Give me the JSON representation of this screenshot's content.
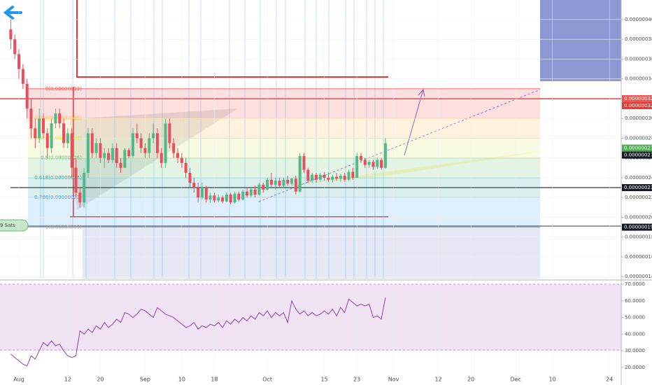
{
  "chart_data": [
    {
      "type": "candlestick",
      "up_color": "#53b987",
      "down_color": "#eb4d5c",
      "grid": true,
      "x": [
        -2,
        -1,
        0,
        1,
        2,
        3,
        4,
        5,
        6,
        7,
        8,
        9,
        10,
        11,
        12,
        13,
        14,
        15,
        16,
        17,
        18,
        19,
        20,
        21,
        22,
        23,
        24,
        25,
        26,
        27,
        28,
        29,
        30,
        31,
        32,
        33,
        34,
        35,
        36,
        37,
        38,
        39,
        40,
        41,
        42,
        43,
        44,
        45,
        46,
        47,
        48,
        49,
        50,
        51,
        52,
        53,
        54,
        55,
        56,
        57,
        58,
        59,
        60,
        61,
        62,
        63,
        64,
        65,
        66,
        67,
        68,
        69,
        70,
        71,
        72,
        73,
        74,
        75,
        76,
        77,
        78,
        79,
        80,
        81,
        82,
        83,
        84,
        85,
        86,
        87,
        88,
        89,
        90
      ],
      "open": [
        3.9e-07,
        3.8e-07,
        3.65e-07,
        3.5e-07,
        3.35e-07,
        3.1e-07,
        2.9e-07,
        2.8e-07,
        3e-07,
        2.85e-07,
        2.7e-07,
        2.95e-07,
        3.05e-07,
        2.95e-07,
        2.75e-07,
        2.85e-07,
        2.5e-07,
        2.25e-07,
        2.15e-07,
        2.45e-07,
        2.85e-07,
        2.65e-07,
        2.75e-07,
        2.6e-07,
        2.65e-07,
        2.58e-07,
        2.7e-07,
        2.55e-07,
        2.5e-07,
        2.68e-07,
        2.62e-07,
        2.85e-07,
        2.8e-07,
        2.7e-07,
        2.65e-07,
        2.8e-07,
        2.85e-07,
        2.65e-07,
        2.55e-07,
        2.95e-07,
        2.75e-07,
        2.65e-07,
        2.6e-07,
        2.55e-07,
        2.45e-07,
        2.35e-07,
        2.3e-07,
        2.2e-07,
        2.3e-07,
        2.18e-07,
        2.22e-07,
        2.17e-07,
        2.2e-07,
        2.16e-07,
        2.23e-07,
        2.15e-07,
        2.24e-07,
        2.18e-07,
        2.26e-07,
        2.22e-07,
        2.28e-07,
        2.23e-07,
        2.33e-07,
        2.28e-07,
        2.38e-07,
        2.33e-07,
        2.37e-07,
        2.32e-07,
        2.38e-07,
        2.34e-07,
        2.39e-07,
        2.26e-07,
        2.62e-07,
        2.48e-07,
        2.37e-07,
        2.43e-07,
        2.38e-07,
        2.43e-07,
        2.4e-07,
        2.38e-07,
        2.41e-07,
        2.39e-07,
        2.42e-07,
        2.38e-07,
        2.46e-07,
        2.4e-07,
        2.62e-07,
        2.58e-07,
        2.53e-07,
        2.56e-07,
        2.51e-07,
        2.58e-07,
        2.5e-07
      ],
      "high": [
        4e-07,
        3.85e-07,
        3.7e-07,
        3.55e-07,
        3.4e-07,
        3.2e-07,
        3e-07,
        3.1e-07,
        3.05e-07,
        2.9e-07,
        3e-07,
        3.1e-07,
        3.1e-07,
        3e-07,
        2.9e-07,
        2.9e-07,
        2.6e-07,
        2.3e-07,
        2.5e-07,
        2.9e-07,
        2.9e-07,
        2.8e-07,
        2.8e-07,
        2.7e-07,
        2.7e-07,
        2.75e-07,
        2.75e-07,
        2.6e-07,
        2.7e-07,
        2.7e-07,
        2.9e-07,
        2.95e-07,
        2.85e-07,
        2.75e-07,
        2.85e-07,
        2.95e-07,
        2.9e-07,
        2.7e-07,
        3e-07,
        3e-07,
        2.8e-07,
        2.7e-07,
        2.65e-07,
        2.6e-07,
        2.5e-07,
        2.4e-07,
        2.35e-07,
        2.35e-07,
        2.32e-07,
        2.25e-07,
        2.25e-07,
        2.23e-07,
        2.22e-07,
        2.25e-07,
        2.25e-07,
        2.26e-07,
        2.26e-07,
        2.28e-07,
        2.3e-07,
        2.3e-07,
        2.32e-07,
        2.35e-07,
        2.35e-07,
        2.4e-07,
        2.45e-07,
        2.4e-07,
        2.4e-07,
        2.4e-07,
        2.42e-07,
        2.4e-07,
        2.42e-07,
        2.65e-07,
        2.65e-07,
        2.5e-07,
        2.45e-07,
        2.45e-07,
        2.45e-07,
        2.46e-07,
        2.45e-07,
        2.43e-07,
        2.45e-07,
        2.44e-07,
        2.45e-07,
        2.48e-07,
        2.5e-07,
        2.65e-07,
        2.65e-07,
        2.6e-07,
        2.58e-07,
        2.58e-07,
        2.6e-07,
        2.6e-07,
        2.8e-07
      ],
      "low": [
        3.7e-07,
        3.6e-07,
        3.4e-07,
        3.3e-07,
        3e-07,
        2.8e-07,
        2.7e-07,
        2.75e-07,
        2.8e-07,
        2.6e-07,
        2.65e-07,
        2.9e-07,
        2.9e-07,
        2.7e-07,
        2.7e-07,
        2.4e-07,
        2.2e-07,
        2.1e-07,
        2.1e-07,
        2.4e-07,
        2.6e-07,
        2.6e-07,
        2.55e-07,
        2.5e-07,
        2.55e-07,
        2.55e-07,
        2.5e-07,
        2.45e-07,
        2.5e-07,
        2.6e-07,
        2.6e-07,
        2.75e-07,
        2.65e-07,
        2.6e-07,
        2.6e-07,
        2.75e-07,
        2.6e-07,
        2.5e-07,
        2.5e-07,
        2.7e-07,
        2.6e-07,
        2.55e-07,
        2.5e-07,
        2.4e-07,
        2.3e-07,
        2.25e-07,
        2.15e-07,
        2.18e-07,
        2.15e-07,
        2.15e-07,
        2.15e-07,
        2.15e-07,
        2.14e-07,
        2.15e-07,
        2.13e-07,
        2.14e-07,
        2.16e-07,
        2.17e-07,
        2.2e-07,
        2.2e-07,
        2.2e-07,
        2.22e-07,
        2.25e-07,
        2.27e-07,
        2.3e-07,
        2.28e-07,
        2.3e-07,
        2.3e-07,
        2.32e-07,
        2.32e-07,
        2.23e-07,
        2.25e-07,
        2.45e-07,
        2.35e-07,
        2.35e-07,
        2.35e-07,
        2.36e-07,
        2.37e-07,
        2.36e-07,
        2.35e-07,
        2.37e-07,
        2.36e-07,
        2.36e-07,
        2.37e-07,
        2.38e-07,
        2.4e-07,
        2.55e-07,
        2.5e-07,
        2.5e-07,
        2.48e-07,
        2.49e-07,
        2.48e-07,
        2.49e-07
      ],
      "close": [
        3.8e-07,
        3.65e-07,
        3.5e-07,
        3.35e-07,
        3.1e-07,
        2.9e-07,
        2.8e-07,
        3e-07,
        2.85e-07,
        2.7e-07,
        2.95e-07,
        3.05e-07,
        2.95e-07,
        2.75e-07,
        2.85e-07,
        2.5e-07,
        2.25e-07,
        2.15e-07,
        2.45e-07,
        2.85e-07,
        2.65e-07,
        2.75e-07,
        2.6e-07,
        2.65e-07,
        2.58e-07,
        2.7e-07,
        2.55e-07,
        2.5e-07,
        2.68e-07,
        2.62e-07,
        2.85e-07,
        2.8e-07,
        2.7e-07,
        2.65e-07,
        2.8e-07,
        2.85e-07,
        2.65e-07,
        2.55e-07,
        2.95e-07,
        2.75e-07,
        2.65e-07,
        2.6e-07,
        2.55e-07,
        2.45e-07,
        2.35e-07,
        2.3e-07,
        2.2e-07,
        2.3e-07,
        2.18e-07,
        2.22e-07,
        2.17e-07,
        2.2e-07,
        2.16e-07,
        2.23e-07,
        2.15e-07,
        2.24e-07,
        2.18e-07,
        2.26e-07,
        2.22e-07,
        2.28e-07,
        2.23e-07,
        2.33e-07,
        2.28e-07,
        2.38e-07,
        2.33e-07,
        2.37e-07,
        2.32e-07,
        2.38e-07,
        2.34e-07,
        2.39e-07,
        2.26e-07,
        2.62e-07,
        2.48e-07,
        2.37e-07,
        2.43e-07,
        2.38e-07,
        2.43e-07,
        2.4e-07,
        2.38e-07,
        2.41e-07,
        2.39e-07,
        2.42e-07,
        2.38e-07,
        2.46e-07,
        2.4e-07,
        2.62e-07,
        2.58e-07,
        2.53e-07,
        2.56e-07,
        2.51e-07,
        2.58e-07,
        2.5e-07,
        2.75e-07
      ],
      "xlim": [
        -4.64,
        147.9
      ],
      "xticks": [
        {
          "value": 0,
          "label": "Aug"
        },
        12,
        20,
        {
          "value": 31,
          "label": "Sep"
        },
        {
          "value": 40,
          "label": "10"
        },
        {
          "value": 48,
          "label": "18"
        },
        {
          "value": 61,
          "label": "Oct"
        },
        {
          "value": 75,
          "label": "15"
        },
        {
          "value": 83,
          "label": "23"
        },
        {
          "value": 92,
          "label": "Nov"
        },
        {
          "value": 103,
          "label": "12"
        },
        {
          "value": 111,
          "label": "20"
        },
        {
          "value": 122,
          "label": "Dec"
        },
        {
          "value": 131,
          "label": "10"
        },
        {
          "value": 145,
          "label": "24"
        }
      ],
      "ylim": [
        1.38e-07,
        4.198e-07
      ],
      "yticks": [
        {
          "value": 4e-07,
          "label": "0.00000040"
        },
        {
          "value": 3.8e-07,
          "label": "0.00000038"
        },
        {
          "value": 3.6e-07,
          "label": "0.00000036"
        },
        {
          "value": 3.4e-07,
          "label": "0.00000034"
        },
        {
          "value": 3.2e-07,
          "label": "0.00000032"
        },
        {
          "value": 3e-07,
          "label": "0.00000030"
        },
        {
          "value": 2.8e-07,
          "label": "0.00000028"
        },
        {
          "value": 2.6e-07,
          "label": "0.00000026"
        },
        {
          "value": 2.4e-07,
          "label": "0.00000024"
        },
        {
          "value": 2.2e-07,
          "label": "0.00000022"
        },
        {
          "value": 2e-07,
          "label": "0.00000020"
        },
        {
          "value": 1.8e-07,
          "label": "0.00000018"
        },
        {
          "value": 1.6e-07,
          "label": "0.00000016"
        },
        {
          "value": 1.4e-07,
          "label": "0.00000014"
        }
      ],
      "fib_levels": [
        {
          "label": "0(0.00000033)",
          "value": 3.3e-07,
          "color": "#ef5350"
        },
        {
          "label": "0.236(0.00000030)",
          "value": 3e-07,
          "color": "#ffb74d"
        },
        {
          "label": "0.382(0.00000028)",
          "value": 2.8e-07,
          "color": "#d4e157"
        },
        {
          "label": "0.5(0.00000026)",
          "value": 2.6e-07,
          "color": "#66bb6a"
        },
        {
          "label": "0.618(0.00000024)",
          "value": 2.4e-07,
          "color": "#26a69a"
        },
        {
          "label": "0.786(0.00000022)",
          "value": 2.2e-07,
          "color": "#42a5f5"
        },
        {
          "label": "1(0.00000019)",
          "value": 1.9e-07,
          "color": "#9e9e9e"
        }
      ],
      "price_markers": [
        {
          "label": "0.00000032",
          "value": 3.2e-07,
          "color": "#ef5350"
        },
        {
          "label": "0.00000032",
          "value": 3.2e-07,
          "color": "#e53935"
        },
        {
          "label": "0.00000027",
          "value": 2.7e-07,
          "color": "#4caf50"
        },
        {
          "label": "0.00000027",
          "value": 2.7e-07,
          "color": "#131722"
        },
        {
          "label": "0.00000023",
          "value": 2.3e-07,
          "color": "#131722"
        },
        {
          "label": "0.00000019",
          "value": 1.9e-07,
          "color": "#131722"
        }
      ],
      "annotation": "9 Sats"
    },
    {
      "type": "line",
      "color": "#8e44ad",
      "values": [
        28,
        26,
        24,
        22,
        21,
        27,
        25,
        30,
        35,
        33,
        36,
        33,
        34,
        30,
        27,
        26,
        27,
        42,
        40,
        43,
        41,
        45,
        43,
        47,
        44,
        46,
        49,
        47,
        53,
        52,
        50,
        52,
        55,
        54,
        52,
        50,
        56,
        54,
        52,
        51,
        50,
        48,
        46,
        44,
        45,
        47,
        43,
        45,
        44,
        46,
        45,
        47,
        44,
        48,
        46,
        49,
        47,
        50,
        48,
        51,
        49,
        53,
        51,
        54,
        50,
        53,
        51,
        53,
        47,
        60,
        55,
        52,
        54,
        51,
        53,
        51,
        52,
        54,
        52,
        55,
        51,
        56,
        53,
        61,
        59,
        57,
        58,
        57,
        58,
        50,
        51,
        49,
        62
      ],
      "ylim": [
        10.3,
        71.7
      ],
      "yticks": [
        {
          "value": 70,
          "label": "70.0000"
        },
        {
          "value": 60,
          "label": "60.0000"
        },
        {
          "value": 50,
          "label": "50.0000"
        },
        {
          "value": 40,
          "label": "40.0000"
        },
        {
          "value": 30,
          "label": "30.0000"
        },
        {
          "value": 20,
          "label": "20.0000"
        }
      ]
    }
  ]
}
